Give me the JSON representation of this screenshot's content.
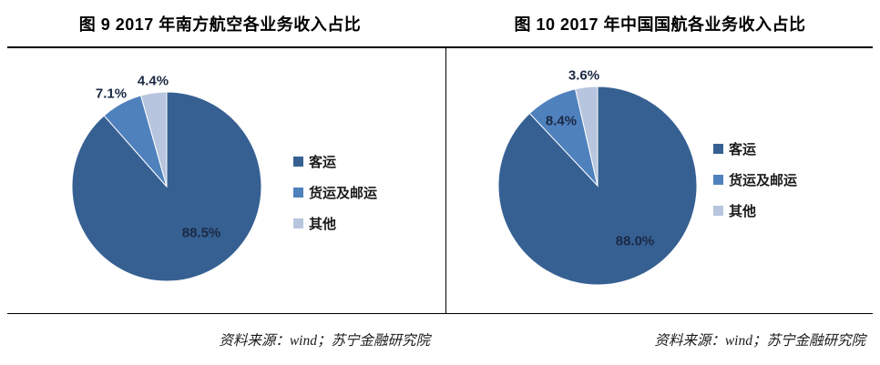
{
  "chart_data": [
    {
      "type": "pie",
      "title": "图 9  2017 年南方航空各业务收入占比",
      "source_note": "资料来源：wind；苏宁金融研究院",
      "legend_position": "right",
      "start_angle_deg": 0,
      "direction": "clockwise",
      "categories": [
        "客运",
        "货运及邮运",
        "其他"
      ],
      "values": [
        88.5,
        7.1,
        4.4
      ],
      "labels": [
        "88.5%",
        "7.1%",
        "4.4%"
      ],
      "colors": [
        "#366092",
        "#4F81BD",
        "#B7C5DE"
      ]
    },
    {
      "type": "pie",
      "title": "图 10  2017 年中国国航各业务收入占比",
      "source_note": "资料来源：wind；苏宁金融研究院",
      "legend_position": "right",
      "start_angle_deg": 0,
      "direction": "clockwise",
      "categories": [
        "客运",
        "货运及邮运",
        "其他"
      ],
      "values": [
        88.0,
        8.4,
        3.6
      ],
      "labels": [
        "88.0%",
        "8.4%",
        "3.6%"
      ],
      "colors": [
        "#366092",
        "#4F81BD",
        "#B7C5DE"
      ]
    }
  ]
}
